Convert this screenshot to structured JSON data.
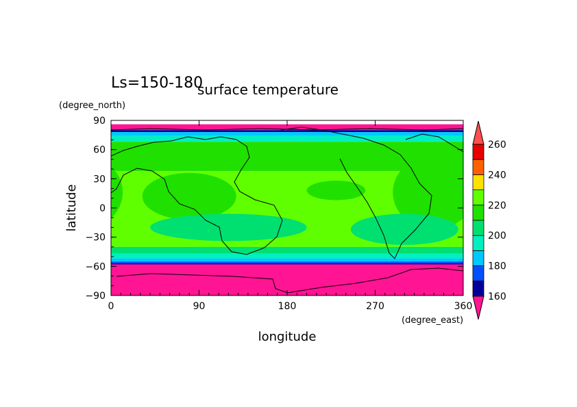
{
  "chart_data": {
    "type": "heatmap",
    "title": "surface temperature",
    "subtitle": "Ls=150-180",
    "xlabel": "longitude",
    "ylabel": "latitude",
    "xunit": "(degree_east)",
    "yunit": "(degree_north)",
    "xlim": [
      0,
      360
    ],
    "ylim": [
      -90,
      90
    ],
    "xticks": [
      "0",
      "90",
      "180",
      "270",
      "360"
    ],
    "yticks": [
      "90",
      "60",
      "30",
      "0",
      "−30",
      "−60",
      "−90"
    ],
    "colorbar": {
      "labels": [
        "260",
        "240",
        "220",
        "200",
        "180",
        "160"
      ],
      "levels": [
        160,
        170,
        180,
        190,
        200,
        210,
        220,
        230,
        240,
        250,
        260
      ],
      "colors": [
        "#ff1493",
        "#000099",
        "#0050ff",
        "#00c8ff",
        "#00f0c0",
        "#00e070",
        "#20e000",
        "#60ff00",
        "#ffe000",
        "#ff6000",
        "#e60000",
        "#ff5050"
      ]
    },
    "bands": [
      {
        "lat_from": 90,
        "lat_to": 86,
        "color": "#ffffff"
      },
      {
        "lat_from": 86,
        "lat_to": 80,
        "color": "#ff1493"
      },
      {
        "lat_from": 80,
        "lat_to": 78,
        "color": "#000099"
      },
      {
        "lat_from": 78,
        "lat_to": 74,
        "color": "#00c8ff"
      },
      {
        "lat_from": 74,
        "lat_to": 68,
        "color": "#00f0c0"
      },
      {
        "lat_from": 68,
        "lat_to": 38,
        "color": "#20e000"
      },
      {
        "lat_from": 38,
        "lat_to": -40,
        "color": "#60ff00"
      },
      {
        "lat_from": -40,
        "lat_to": -47,
        "color": "#00e070"
      },
      {
        "lat_from": -47,
        "lat_to": -52,
        "color": "#00f0c0"
      },
      {
        "lat_from": -52,
        "lat_to": -55,
        "color": "#00c8ff"
      },
      {
        "lat_from": -55,
        "lat_to": -57,
        "color": "#0050ff"
      },
      {
        "lat_from": -57,
        "lat_to": -58,
        "color": "#000099"
      },
      {
        "lat_from": -58,
        "lat_to": -90,
        "color": "#ff1493"
      }
    ],
    "blobs": [
      {
        "lon": 80,
        "lat": 12,
        "rlon": 48,
        "rlat": 24,
        "color": "#20e000"
      },
      {
        "lon": 330,
        "lat": 16,
        "rlon": 42,
        "rlat": 38,
        "color": "#20e000"
      },
      {
        "lon": 230,
        "lat": 18,
        "rlon": 30,
        "rlat": 10,
        "color": "#20e000"
      },
      {
        "lon": 300,
        "lat": -22,
        "rlon": 55,
        "rlat": 16,
        "color": "#00e070"
      },
      {
        "lon": 120,
        "lat": -20,
        "rlon": 80,
        "rlat": 14,
        "color": "#00e070"
      }
    ]
  }
}
